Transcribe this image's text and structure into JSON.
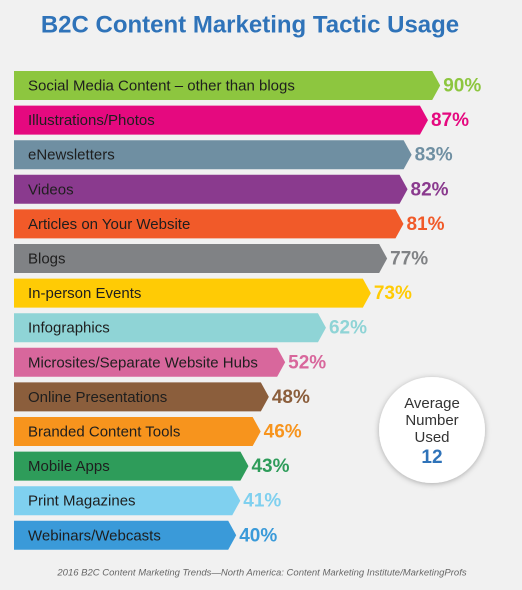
{
  "chart_data": {
    "type": "bar",
    "orientation": "horizontal",
    "title": "B2C Content Marketing Tactic Usage",
    "categories": [
      "Social Media Content – other than blogs",
      "Illustrations/Photos",
      "eNewsletters",
      "Videos",
      "Articles on Your Website",
      "Blogs",
      "In-person Events",
      "Infographics",
      "Microsites/Separate Website Hubs",
      "Online Presentations",
      "Branded Content Tools",
      "Mobile Apps",
      "Print Magazines",
      "Webinars/Webcasts"
    ],
    "values": [
      90,
      87,
      83,
      82,
      81,
      77,
      73,
      62,
      52,
      48,
      46,
      43,
      41,
      40
    ],
    "value_labels": [
      "90%",
      "87%",
      "83%",
      "82%",
      "81%",
      "77%",
      "73%",
      "62%",
      "52%",
      "48%",
      "46%",
      "43%",
      "41%",
      "40%"
    ],
    "colors": [
      "#8dc63f",
      "#e5097f",
      "#6f8fa2",
      "#8a3a8e",
      "#f15a29",
      "#808285",
      "#ffcb05",
      "#8fd4d6",
      "#d8679c",
      "#8b5e3c",
      "#f7941d",
      "#2e9c5a",
      "#7fd0ef",
      "#3a9ad9"
    ],
    "average": {
      "label": [
        "Average",
        "Number",
        "Used"
      ],
      "value": 12
    },
    "source": "2016 B2C Content Marketing Trends—North America: Content Marketing Institute/MarketingProfs"
  }
}
